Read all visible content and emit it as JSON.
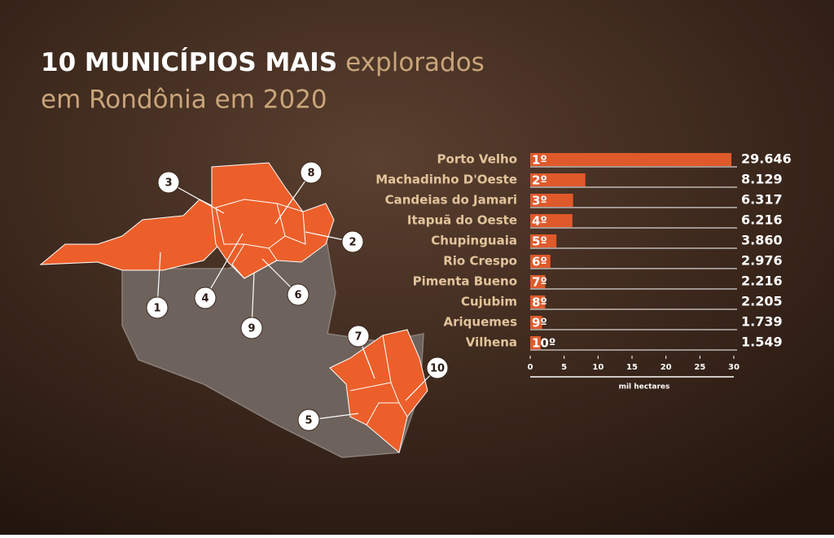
{
  "title": [
    "10 MUNICÍPIOS MAIS",
    "explorados",
    "em Rondônia em 2020"
  ],
  "map_labels": [
    "1",
    "2",
    "3",
    "4",
    "5",
    "6",
    "7",
    "8",
    "9",
    "10"
  ],
  "chart_data": {
    "type": "bar",
    "orientation": "horizontal",
    "categories": [
      "Porto Velho",
      "Machadinho D'Oeste",
      "Candeias do Jamari",
      "Itapuã do Oeste",
      "Chupinguaia",
      "Rio Crespo",
      "Pimenta Bueno",
      "Cujubim",
      "Ariquemes",
      "Vilhena"
    ],
    "ranks": [
      "1º",
      "2º",
      "3º",
      "4º",
      "5º",
      "6º",
      "7º",
      "8º",
      "9º",
      "10º"
    ],
    "values": [
      29.646,
      8.129,
      6.317,
      6.216,
      3.86,
      2.976,
      2.216,
      2.205,
      1.739,
      1.549
    ],
    "value_labels": [
      "29.646",
      "8.129",
      "6.317",
      "6.216",
      "3.860",
      "2.976",
      "2.216",
      "2.205",
      "1.739",
      "1.549"
    ],
    "color": "#e0592a",
    "xlim": [
      0,
      30
    ],
    "xticks": [
      0,
      5,
      10,
      15,
      20,
      25,
      30
    ],
    "x_label": "mil hectares"
  }
}
